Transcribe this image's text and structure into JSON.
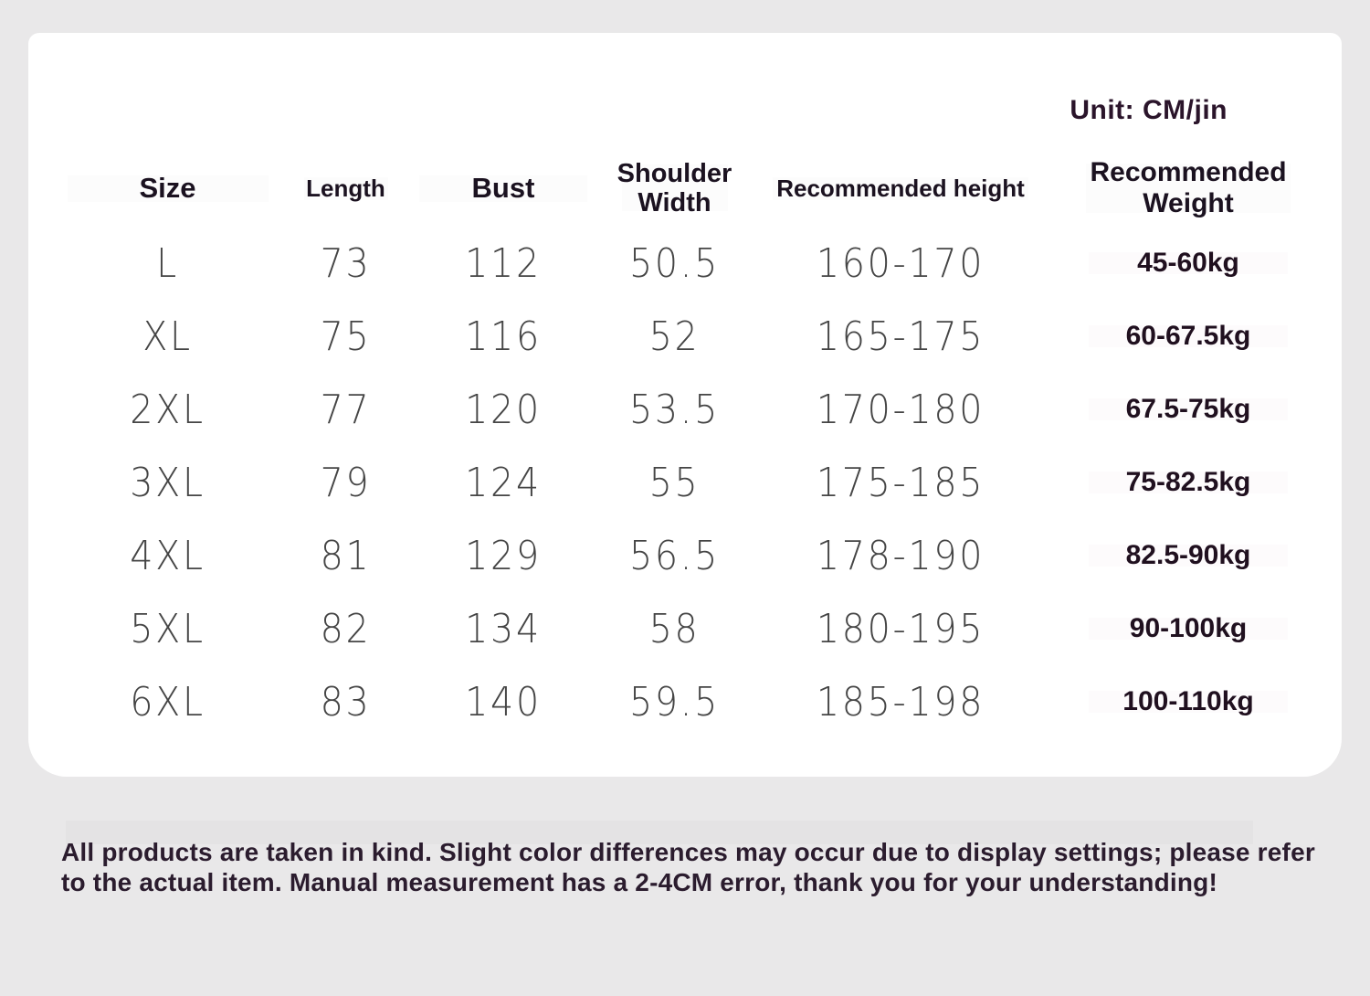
{
  "colors": {
    "page_background": "#e9e8e9",
    "card_background": "#ffffff",
    "heading_text": "#1b1220",
    "data_text": "#454545",
    "accent_text": "#2a142a",
    "disclaimer_text": "#2b1c2e"
  },
  "unit_label": "Unit: CM/jin",
  "table": {
    "columns": [
      "Size",
      "Length",
      "Bust",
      "Shoulder Width",
      "Recommended height",
      "Recommended Weight"
    ],
    "rows": [
      {
        "size": "L",
        "length": "73",
        "bust": "112",
        "shoulder_width": "50.5",
        "recommended_height": "160-170",
        "recommended_weight": "45-60kg"
      },
      {
        "size": "XL",
        "length": "75",
        "bust": "116",
        "shoulder_width": "52",
        "recommended_height": "165-175",
        "recommended_weight": "60-67.5kg"
      },
      {
        "size": "2XL",
        "length": "77",
        "bust": "120",
        "shoulder_width": "53.5",
        "recommended_height": "170-180",
        "recommended_weight": "67.5-75kg"
      },
      {
        "size": "3XL",
        "length": "79",
        "bust": "124",
        "shoulder_width": "55",
        "recommended_height": "175-185",
        "recommended_weight": "75-82.5kg"
      },
      {
        "size": "4XL",
        "length": "81",
        "bust": "129",
        "shoulder_width": "56.5",
        "recommended_height": "178-190",
        "recommended_weight": "82.5-90kg"
      },
      {
        "size": "5XL",
        "length": "82",
        "bust": "134",
        "shoulder_width": "58",
        "recommended_height": "180-195",
        "recommended_weight": "90-100kg"
      },
      {
        "size": "6XL",
        "length": "83",
        "bust": "140",
        "shoulder_width": "59.5",
        "recommended_height": "185-198",
        "recommended_weight": "100-110kg"
      }
    ]
  },
  "disclaimer": {
    "line1": "All products are taken in kind. Slight color differences may occur due to display settings; please refer",
    "line2": "to the actual item. Manual measurement has a 2-4CM error, thank you for your understanding!"
  }
}
